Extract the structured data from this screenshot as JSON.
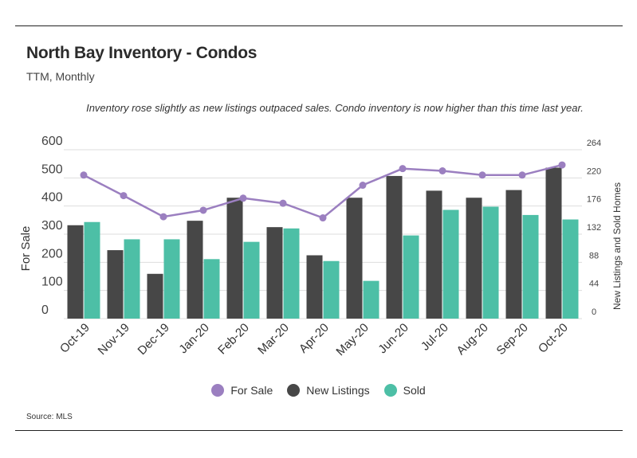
{
  "header": {
    "title": "North Bay Inventory - Condos",
    "subtitle": "TTM, Monthly",
    "annotation": "Inventory rose slightly as new listings outpaced sales. Condo inventory is now higher than this time last year."
  },
  "footer": {
    "source": "Source:  MLS"
  },
  "colors": {
    "for_sale": "#9b7fc0",
    "new_listings": "#474747",
    "sold": "#4dbfa6",
    "grid": "#dddddd"
  },
  "chart_data": {
    "type": "bar",
    "categories": [
      "Oct-19",
      "Nov-19",
      "Dec-19",
      "Jan-20",
      "Feb-20",
      "Mar-20",
      "Apr-20",
      "May-20",
      "Jun-20",
      "Jul-20",
      "Aug-20",
      "Sep-20",
      "Oct-20"
    ],
    "series": [
      {
        "name": "For Sale",
        "type": "line",
        "axis": "left",
        "values": [
          510,
          437,
          362,
          385,
          428,
          410,
          358,
          474,
          533,
          525,
          510,
          510,
          546
        ]
      },
      {
        "name": "New Listings",
        "type": "bar",
        "axis": "right",
        "values": [
          146,
          107,
          70,
          153,
          189,
          143,
          99,
          189,
          223,
          200,
          189,
          201,
          236
        ]
      },
      {
        "name": "Sold",
        "type": "bar",
        "axis": "right",
        "values": [
          151,
          124,
          124,
          93,
          120,
          141,
          90,
          59,
          130,
          170,
          175,
          162,
          155
        ]
      }
    ],
    "ylabel": "For Sale",
    "y2label": "New Listings and Sold Homes",
    "ylim": [
      0,
      600
    ],
    "y2lim": [
      0,
      264
    ],
    "yticks": [
      "0",
      "100",
      "200",
      "300",
      "400",
      "500",
      "600"
    ],
    "y2ticks": [
      "0",
      "44",
      "88",
      "132",
      "176",
      "220",
      "264"
    ],
    "legend": [
      "For Sale",
      "New Listings",
      "Sold"
    ],
    "legend_position": "bottom",
    "grid": true
  }
}
